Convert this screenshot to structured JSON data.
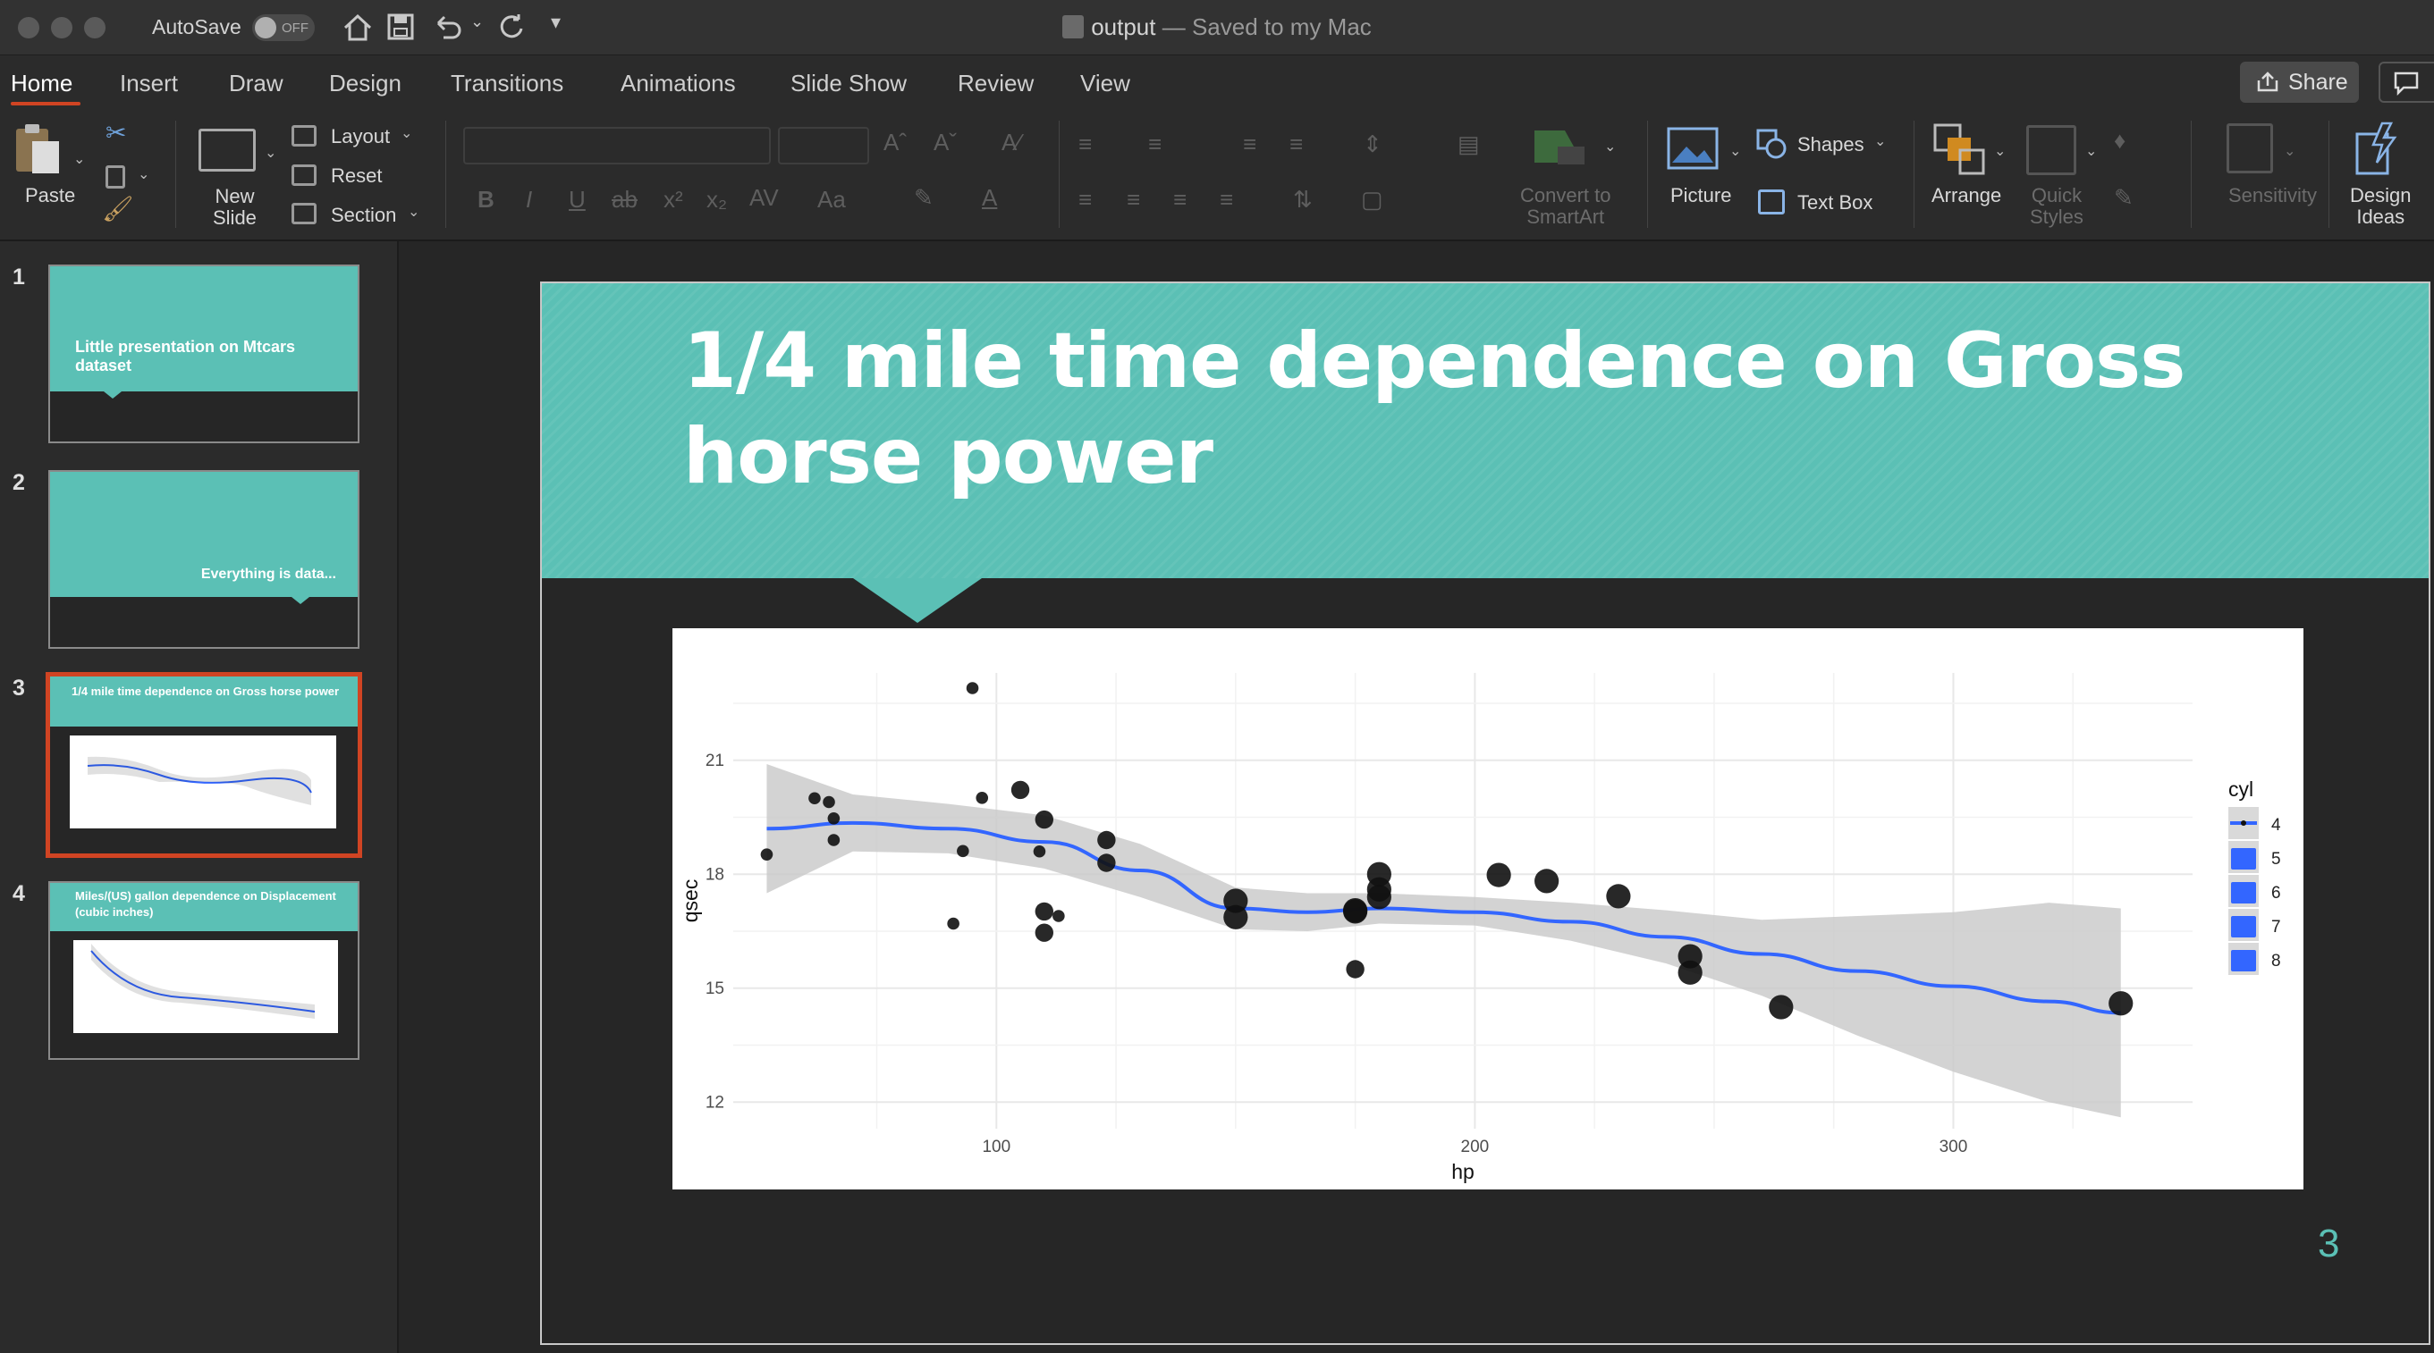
{
  "titlebar": {
    "autosave_label": "AutoSave",
    "autosave_state": "OFF",
    "doc_name": "output",
    "doc_status": "— Saved to my Mac"
  },
  "tabs": [
    "Home",
    "Insert",
    "Draw",
    "Design",
    "Transitions",
    "Animations",
    "Slide Show",
    "Review",
    "View"
  ],
  "active_tab": "Home",
  "share_label": "Share",
  "ribbon": {
    "paste": "Paste",
    "new_slide": [
      "New",
      "Slide"
    ],
    "layout": "Layout",
    "reset": "Reset",
    "section": "Section",
    "convert_smartart": [
      "Convert to",
      "SmartArt"
    ],
    "picture": "Picture",
    "shapes": "Shapes",
    "text_box": "Text Box",
    "arrange": "Arrange",
    "quick_styles": [
      "Quick",
      "Styles"
    ],
    "sensitivity": "Sensitivity",
    "design_ideas": [
      "Design",
      "Ideas"
    ]
  },
  "slides": [
    {
      "num": "1",
      "text": "Little presentation on Mtcars dataset"
    },
    {
      "num": "2",
      "text": "Everything is data..."
    },
    {
      "num": "3",
      "text": "1/4 mile time dependence on Gross horse power"
    },
    {
      "num": "4",
      "text": "Miles/(US) gallon dependence on Displacement (cubic inches)"
    }
  ],
  "selected_slide": "3",
  "current_slide": {
    "title": "1/4 mile time dependence on Gross horse power",
    "page_number": "3"
  },
  "colors": {
    "accent_teal": "#5bc0b5",
    "smooth_line": "#3366ff",
    "selection": "#d04423"
  },
  "chart_data": {
    "type": "scatter",
    "xlabel": "hp",
    "ylabel": "qsec",
    "xlim": [
      45,
      350
    ],
    "ylim": [
      11.3,
      23.3
    ],
    "xticks": [
      100,
      200,
      300
    ],
    "yticks": [
      12,
      15,
      18,
      21
    ],
    "legend": {
      "title": "cyl",
      "entries": [
        "4",
        "5",
        "6",
        "7",
        "8"
      ],
      "placement": "right"
    },
    "points": [
      {
        "x": 110,
        "y": 16.46,
        "size": 6
      },
      {
        "x": 110,
        "y": 17.02,
        "size": 6
      },
      {
        "x": 93,
        "y": 18.61,
        "size": 4
      },
      {
        "x": 110,
        "y": 19.44,
        "size": 6
      },
      {
        "x": 175,
        "y": 17.02,
        "size": 8
      },
      {
        "x": 105,
        "y": 20.22,
        "size": 6
      },
      {
        "x": 245,
        "y": 15.84,
        "size": 8
      },
      {
        "x": 62,
        "y": 20.0,
        "size": 4
      },
      {
        "x": 95,
        "y": 22.9,
        "size": 4
      },
      {
        "x": 123,
        "y": 18.3,
        "size": 6
      },
      {
        "x": 123,
        "y": 18.9,
        "size": 6
      },
      {
        "x": 180,
        "y": 17.4,
        "size": 8
      },
      {
        "x": 180,
        "y": 17.6,
        "size": 8
      },
      {
        "x": 180,
        "y": 18.0,
        "size": 8
      },
      {
        "x": 205,
        "y": 17.98,
        "size": 8
      },
      {
        "x": 215,
        "y": 17.82,
        "size": 8
      },
      {
        "x": 230,
        "y": 17.42,
        "size": 8
      },
      {
        "x": 66,
        "y": 19.47,
        "size": 4
      },
      {
        "x": 52,
        "y": 18.52,
        "size": 4
      },
      {
        "x": 65,
        "y": 19.9,
        "size": 4
      },
      {
        "x": 97,
        "y": 20.01,
        "size": 4
      },
      {
        "x": 150,
        "y": 16.87,
        "size": 8
      },
      {
        "x": 150,
        "y": 17.3,
        "size": 8
      },
      {
        "x": 245,
        "y": 15.41,
        "size": 8
      },
      {
        "x": 175,
        "y": 17.05,
        "size": 8
      },
      {
        "x": 66,
        "y": 18.9,
        "size": 4
      },
      {
        "x": 91,
        "y": 16.7,
        "size": 4
      },
      {
        "x": 113,
        "y": 16.9,
        "size": 4
      },
      {
        "x": 264,
        "y": 14.5,
        "size": 8
      },
      {
        "x": 175,
        "y": 15.5,
        "size": 6
      },
      {
        "x": 335,
        "y": 14.6,
        "size": 8
      },
      {
        "x": 109,
        "y": 18.6,
        "size": 4
      }
    ],
    "smooth": {
      "x": [
        52,
        70,
        90,
        110,
        130,
        150,
        165,
        180,
        200,
        220,
        240,
        260,
        280,
        300,
        320,
        335
      ],
      "y": [
        19.2,
        19.35,
        19.2,
        18.85,
        18.1,
        17.1,
        17.0,
        17.1,
        17.0,
        16.75,
        16.35,
        15.9,
        15.45,
        15.05,
        14.65,
        14.35
      ]
    },
    "band_lower": [
      17.5,
      18.6,
      18.55,
      18.15,
      17.4,
      16.55,
      16.5,
      16.7,
      16.65,
      16.25,
      15.65,
      14.8,
      13.75,
      12.8,
      12.0,
      11.6
    ],
    "band_upper": [
      20.9,
      20.1,
      19.85,
      19.55,
      18.8,
      17.65,
      17.5,
      17.5,
      17.4,
      17.25,
      17.05,
      16.8,
      16.9,
      17.0,
      17.25,
      17.1
    ]
  }
}
